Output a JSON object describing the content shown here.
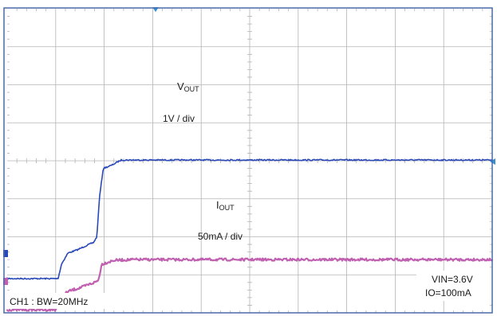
{
  "chart_data": {
    "type": "line",
    "grid": true,
    "colors": {
      "vout": "#2a48b8",
      "iout": "#c060b0",
      "grid": "#b4b4b4",
      "frame": "#4a6aa8",
      "background": "#ffffff"
    },
    "x_divisions": 10,
    "y_divisions": 8,
    "series": [
      {
        "key": "vout",
        "name_main": "V",
        "name_sub": "OUT",
        "scale": "1V / div",
        "points": [
          [
            0.0,
            -3.1
          ],
          [
            1.05,
            -3.1
          ],
          [
            1.12,
            -2.72
          ],
          [
            1.25,
            -2.43
          ],
          [
            1.45,
            -2.34
          ],
          [
            1.65,
            -2.22
          ],
          [
            1.78,
            -2.15
          ],
          [
            1.85,
            -2.0
          ],
          [
            1.9,
            -1.0
          ],
          [
            1.98,
            -0.2
          ],
          [
            2.15,
            -0.12
          ],
          [
            2.35,
            0.02
          ],
          [
            2.5,
            0.02
          ],
          [
            10.0,
            0.02
          ]
        ]
      },
      {
        "key": "iout",
        "name_main": "I",
        "name_sub": "OUT",
        "scale": "50mA / div",
        "points": [
          [
            0.0,
            -3.92
          ],
          [
            1.0,
            -3.92
          ],
          [
            1.12,
            -3.58
          ],
          [
            1.25,
            -3.44
          ],
          [
            1.55,
            -3.32
          ],
          [
            1.8,
            -3.2
          ],
          [
            1.88,
            -3.15
          ],
          [
            1.95,
            -2.72
          ],
          [
            2.2,
            -2.62
          ],
          [
            2.6,
            -2.6
          ],
          [
            10.0,
            -2.6
          ]
        ]
      }
    ],
    "annotations": {
      "vout_label_main": "V",
      "vout_label_sub": "OUT",
      "vout_scale": "1V / div",
      "iout_label_main": "I",
      "iout_label_sub": "OUT",
      "iout_scale": "50mA / div",
      "vin": "VIN=3.6V",
      "io": "IO=100mA",
      "channel": "CH1 : BW=20MHz"
    }
  }
}
